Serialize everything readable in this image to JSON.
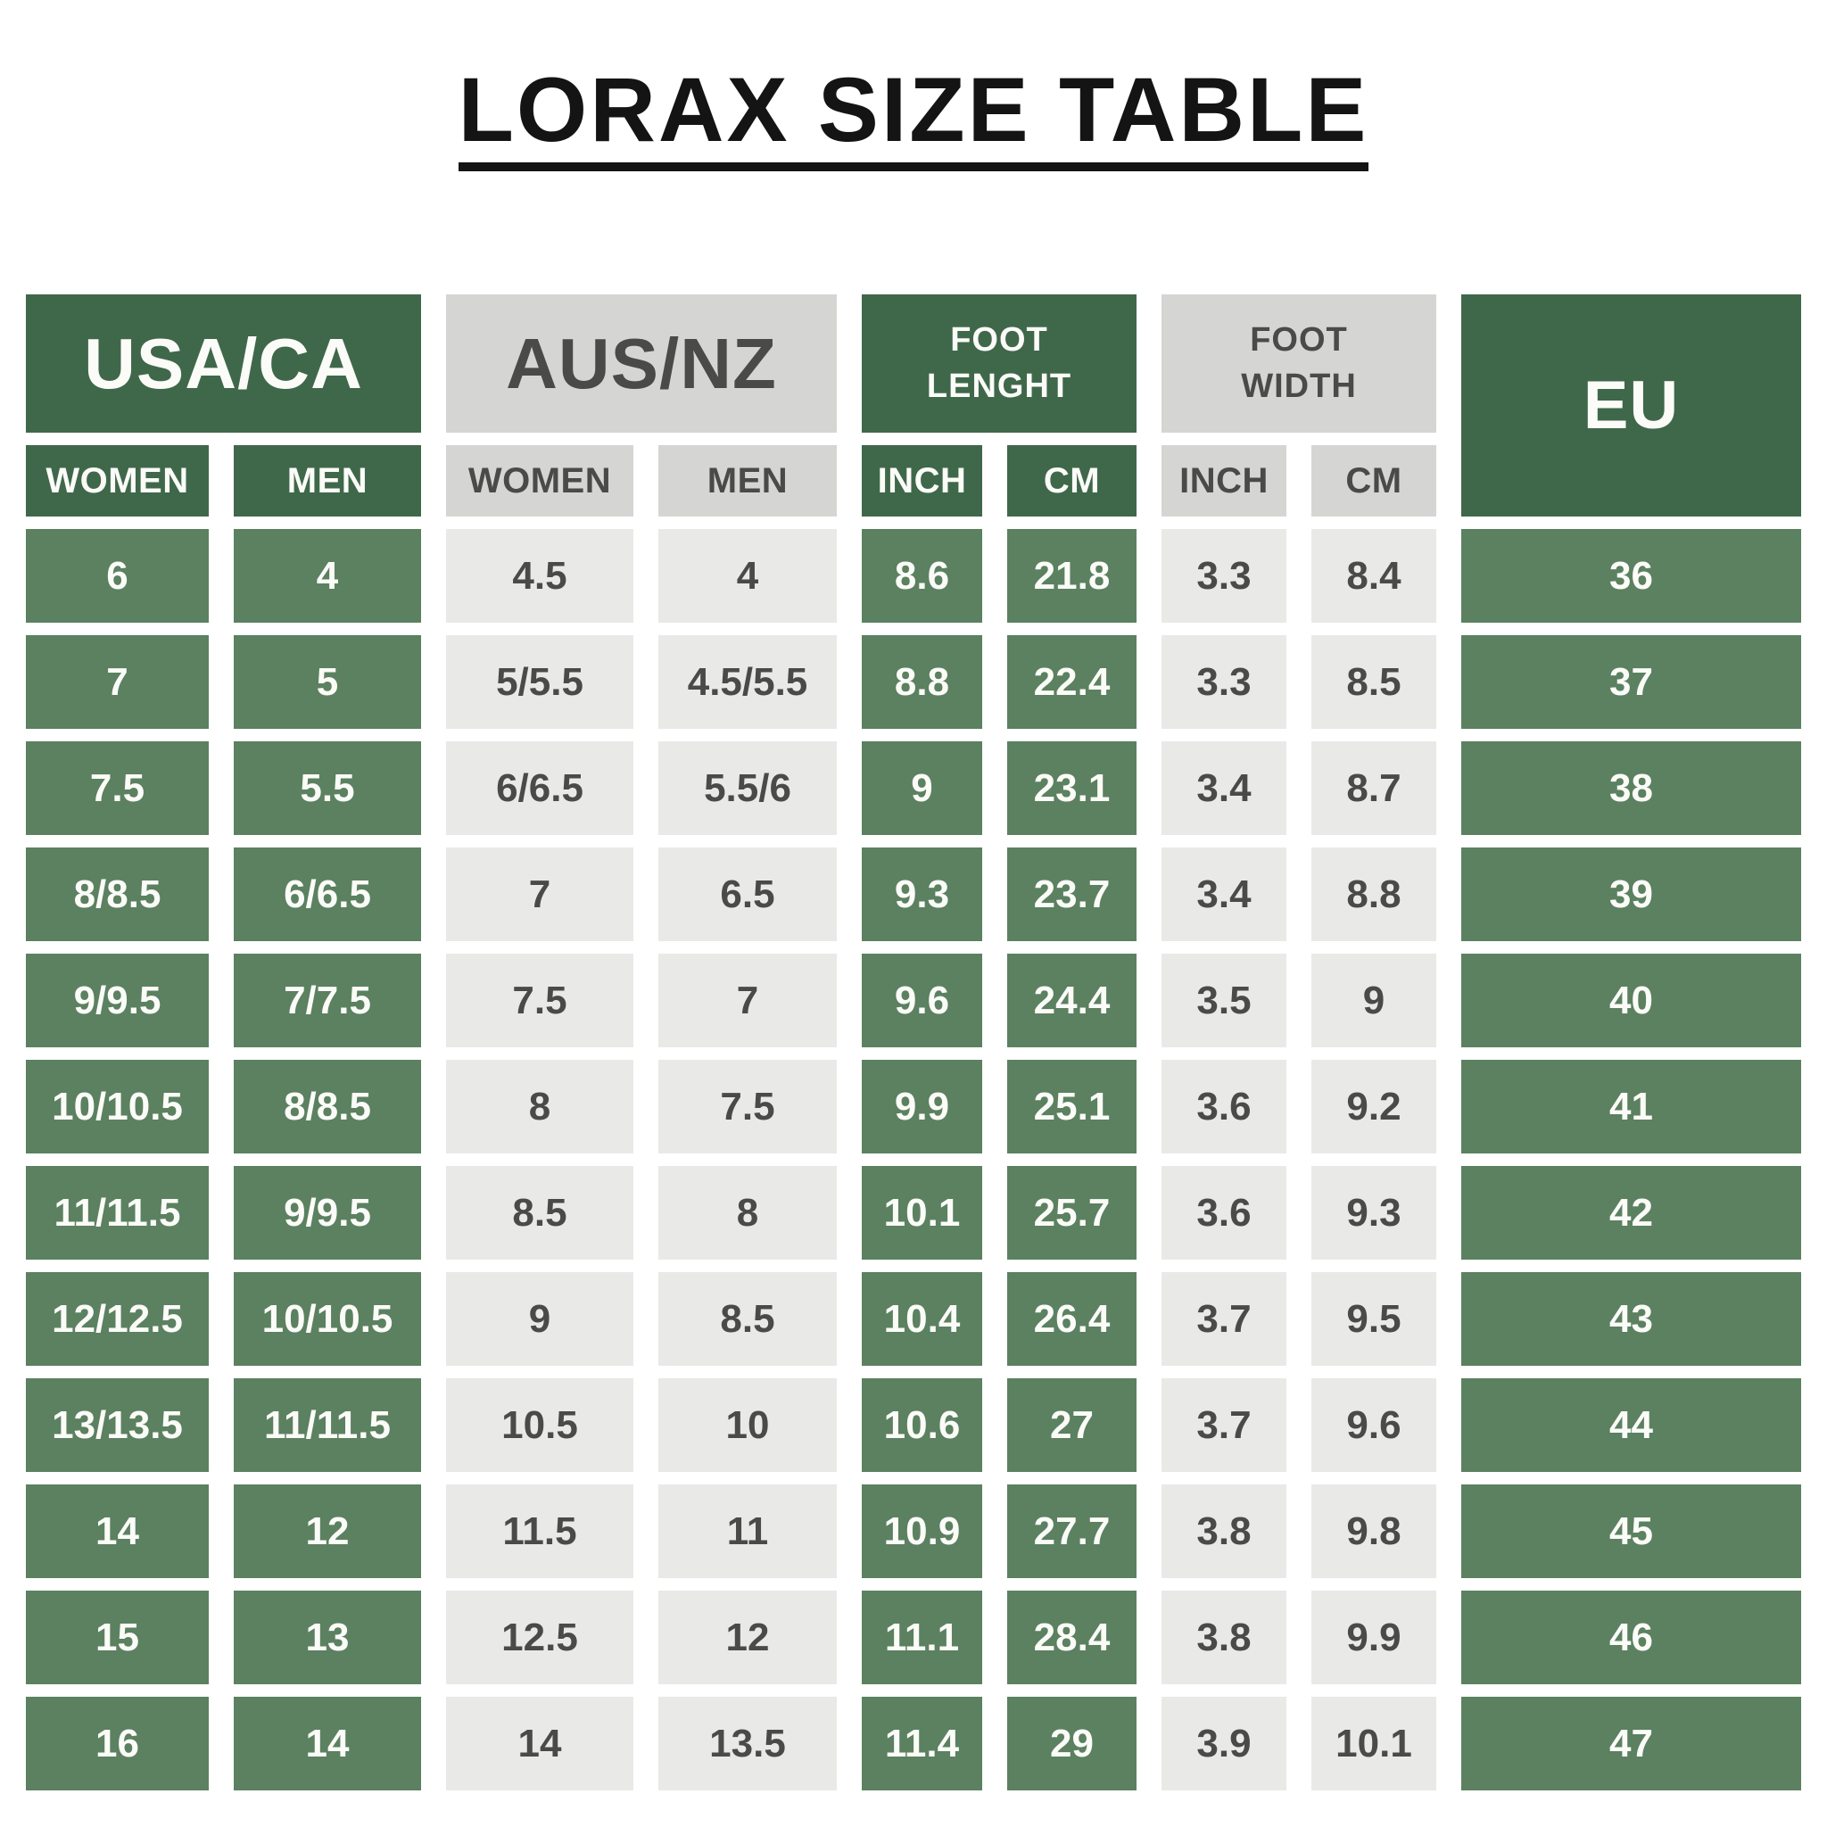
{
  "title": "LORAX SIZE TABLE",
  "colors": {
    "header_green": "#3f684a",
    "cell_green": "#5b8160",
    "header_gray": "#d5d5d3",
    "cell_gray": "#e9e9e7",
    "text_on_green": "#fbfbf8",
    "text_on_gray": "#4a4a48",
    "title_color": "#141414",
    "background": "#ffffff"
  },
  "table": {
    "groups": [
      {
        "label": "USA/CA",
        "theme": "green",
        "subcols": [
          "WOMEN",
          "MEN"
        ]
      },
      {
        "label": "AUS/NZ",
        "theme": "gray",
        "subcols": [
          "WOMEN",
          "MEN"
        ]
      },
      {
        "label": "FOOT\nLENGHT",
        "theme": "green",
        "subcols": [
          "INCH",
          "CM"
        ]
      },
      {
        "label": "FOOT\nWIDTH",
        "theme": "gray",
        "subcols": [
          "INCH",
          "CM"
        ]
      },
      {
        "label": "EU",
        "theme": "green",
        "subcols": []
      }
    ],
    "rows": [
      [
        "6",
        "4",
        "4.5",
        "4",
        "8.6",
        "21.8",
        "3.3",
        "8.4",
        "36"
      ],
      [
        "7",
        "5",
        "5/5.5",
        "4.5/5.5",
        "8.8",
        "22.4",
        "3.3",
        "8.5",
        "37"
      ],
      [
        "7.5",
        "5.5",
        "6/6.5",
        "5.5/6",
        "9",
        "23.1",
        "3.4",
        "8.7",
        "38"
      ],
      [
        "8/8.5",
        "6/6.5",
        "7",
        "6.5",
        "9.3",
        "23.7",
        "3.4",
        "8.8",
        "39"
      ],
      [
        "9/9.5",
        "7/7.5",
        "7.5",
        "7",
        "9.6",
        "24.4",
        "3.5",
        "9",
        "40"
      ],
      [
        "10/10.5",
        "8/8.5",
        "8",
        "7.5",
        "9.9",
        "25.1",
        "3.6",
        "9.2",
        "41"
      ],
      [
        "11/11.5",
        "9/9.5",
        "8.5",
        "8",
        "10.1",
        "25.7",
        "3.6",
        "9.3",
        "42"
      ],
      [
        "12/12.5",
        "10/10.5",
        "9",
        "8.5",
        "10.4",
        "26.4",
        "3.7",
        "9.5",
        "43"
      ],
      [
        "13/13.5",
        "11/11.5",
        "10.5",
        "10",
        "10.6",
        "27",
        "3.7",
        "9.6",
        "44"
      ],
      [
        "14",
        "12",
        "11.5",
        "11",
        "10.9",
        "27.7",
        "3.8",
        "9.8",
        "45"
      ],
      [
        "15",
        "13",
        "12.5",
        "12",
        "11.1",
        "28.4",
        "3.8",
        "9.9",
        "46"
      ],
      [
        "16",
        "14",
        "14",
        "13.5",
        "11.4",
        "29",
        "3.9",
        "10.1",
        "47"
      ]
    ]
  }
}
